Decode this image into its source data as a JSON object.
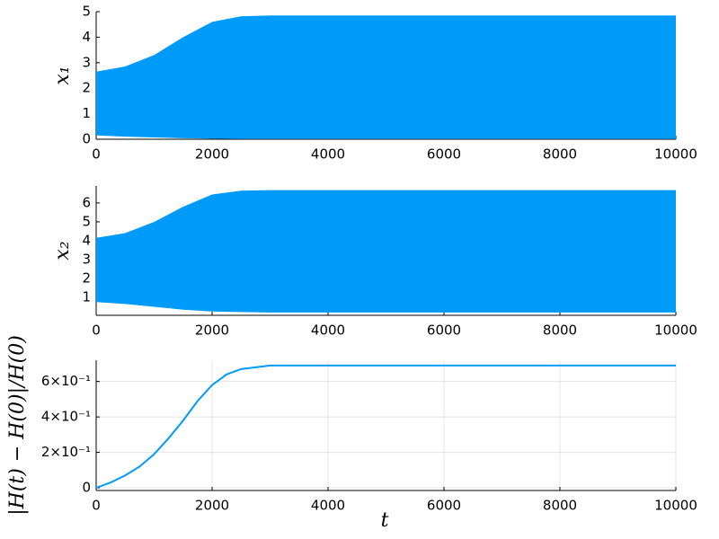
{
  "chart_data": [
    {
      "type": "band",
      "ylabel": "x₁",
      "color": "#009af9",
      "x": [
        0,
        500,
        1000,
        1500,
        2000,
        2500,
        3000,
        4000,
        5000,
        6000,
        7000,
        8000,
        9000,
        10000
      ],
      "upper": [
        2.65,
        2.85,
        3.3,
        4.0,
        4.6,
        4.82,
        4.85,
        4.85,
        4.85,
        4.85,
        4.85,
        4.85,
        4.85,
        4.85
      ],
      "lower": [
        0.15,
        0.1,
        0.07,
        0.04,
        0.02,
        0.01,
        0.01,
        0.01,
        0.01,
        0.01,
        0.01,
        0.01,
        0.01,
        0.01
      ],
      "xlim": [
        0,
        10000
      ],
      "xticks": [
        0,
        2000,
        4000,
        6000,
        8000,
        10000
      ],
      "ylim": [
        0,
        5
      ],
      "yticks": [
        0,
        1,
        2,
        3,
        4,
        5
      ],
      "grid": false
    },
    {
      "type": "band",
      "ylabel": "x₂",
      "color": "#009af9",
      "x": [
        0,
        500,
        1000,
        1500,
        2000,
        2500,
        3000,
        4000,
        5000,
        6000,
        7000,
        8000,
        9000,
        10000
      ],
      "upper": [
        4.15,
        4.4,
        5.0,
        5.8,
        6.45,
        6.65,
        6.68,
        6.68,
        6.68,
        6.68,
        6.68,
        6.68,
        6.68,
        6.68
      ],
      "lower": [
        0.75,
        0.65,
        0.5,
        0.35,
        0.25,
        0.22,
        0.2,
        0.2,
        0.2,
        0.2,
        0.2,
        0.2,
        0.2,
        0.2
      ],
      "xlim": [
        0,
        10000
      ],
      "xticks": [
        0,
        2000,
        4000,
        6000,
        8000,
        10000
      ],
      "ylim": [
        0.05,
        6.9
      ],
      "yticks": [
        1,
        2,
        3,
        4,
        5,
        6
      ],
      "grid": false
    },
    {
      "type": "line",
      "ylabel": "|H(t) − H(0)|/H(0)",
      "xlabel": "t",
      "color": "#009af9",
      "x": [
        0,
        250,
        500,
        750,
        1000,
        1250,
        1500,
        1750,
        2000,
        2250,
        2500,
        3000,
        4000,
        5000,
        6000,
        7000,
        8000,
        9000,
        10000
      ],
      "values": [
        0,
        0.03,
        0.07,
        0.12,
        0.19,
        0.28,
        0.38,
        0.49,
        0.58,
        0.64,
        0.67,
        0.69,
        0.69,
        0.69,
        0.69,
        0.69,
        0.69,
        0.69,
        0.69
      ],
      "xlim": [
        0,
        10000
      ],
      "xticks": [
        0,
        2000,
        4000,
        6000,
        8000,
        10000
      ],
      "ylim": [
        -0.015,
        0.72
      ],
      "yticks": [
        0,
        {
          "value": 0.2,
          "label": "2×10⁻¹"
        },
        {
          "value": 0.4,
          "label": "4×10⁻¹"
        },
        {
          "value": 0.6,
          "label": "6×10⁻¹"
        }
      ],
      "grid": true
    }
  ]
}
